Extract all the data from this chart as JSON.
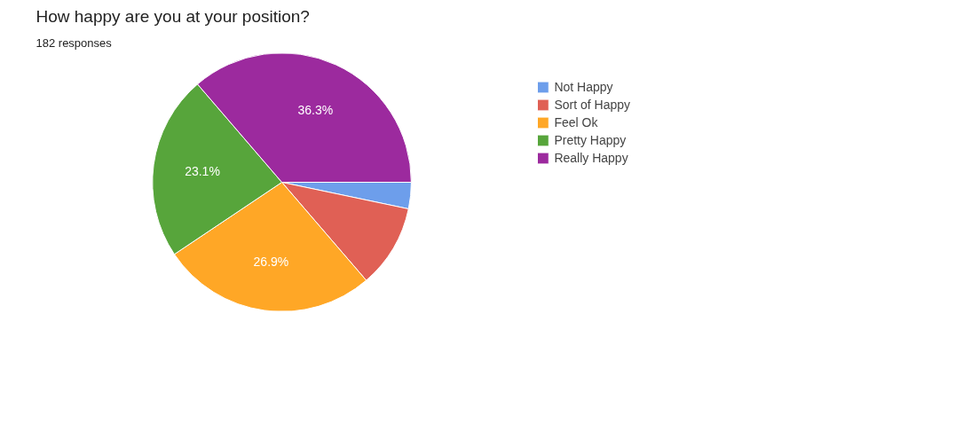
{
  "chart_data": {
    "type": "pie",
    "title": "How happy are you at your position?",
    "subtitle": "182 responses",
    "categories": [
      "Not Happy",
      "Sort of Happy",
      "Feel Ok",
      "Pretty Happy",
      "Really Happy"
    ],
    "values": [
      3.3,
      10.4,
      26.9,
      23.1,
      36.3
    ],
    "colors": [
      "#6d9eeb",
      "#e06055",
      "#ffa726",
      "#57a53b",
      "#9c2a9e"
    ],
    "value_labels": [
      null,
      null,
      "26.9%",
      "23.1%",
      "36.3%"
    ],
    "legend": "right"
  }
}
